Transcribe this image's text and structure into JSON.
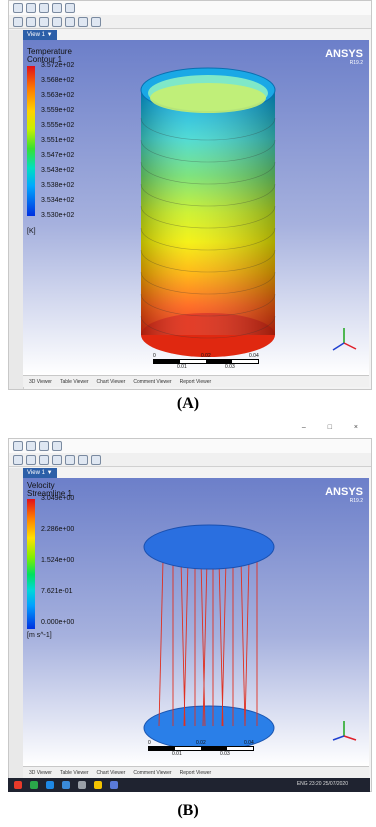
{
  "panel_a": {
    "caption": "(A)",
    "view_tab": "View 1 ▼",
    "logo": "ANSYS",
    "logo_version": "R19.2",
    "legend": {
      "title": "Temperature",
      "subtitle": "Contour 1",
      "labels": [
        "3.572e+02",
        "3.568e+02",
        "3.563e+02",
        "3.559e+02",
        "3.555e+02",
        "3.551e+02",
        "3.547e+02",
        "3.543e+02",
        "3.538e+02",
        "3.534e+02",
        "3.530e+02"
      ],
      "unit": "[K]"
    },
    "scale": {
      "ticks": [
        "0",
        "0.02",
        "0.04 (m)"
      ],
      "mid": [
        "0.01",
        "0.03"
      ]
    },
    "bottom_tabs": [
      "3D Viewer",
      "Table Viewer",
      "Chart Viewer",
      "Comment Viewer",
      "Report Viewer"
    ]
  },
  "panel_b": {
    "caption": "(B)",
    "view_tab": "View 1 ▼",
    "logo": "ANSYS",
    "logo_version": "R19.2",
    "legend": {
      "title": "Velocity",
      "subtitle": "Streamline 1",
      "labels": [
        "3.049e+00",
        "2.286e+00",
        "1.524e+00",
        "7.621e-01",
        "0.000e+00"
      ],
      "unit": "[m s^-1]"
    },
    "scale": {
      "ticks": [
        "0",
        "0.02",
        "0.04 (m)"
      ],
      "mid": [
        "0.01",
        "0.03"
      ]
    },
    "bottom_tabs": [
      "3D Viewer",
      "Table Viewer",
      "Chart Viewer",
      "Comment Viewer",
      "Report Viewer"
    ],
    "tray": {
      "lang": "ENG",
      "time": "23:20",
      "date": "25/07/2020"
    },
    "window_controls": "– □ ×"
  },
  "colors": {
    "viewport_top": "#6c7fc9",
    "accent": "#2c5fa8"
  }
}
